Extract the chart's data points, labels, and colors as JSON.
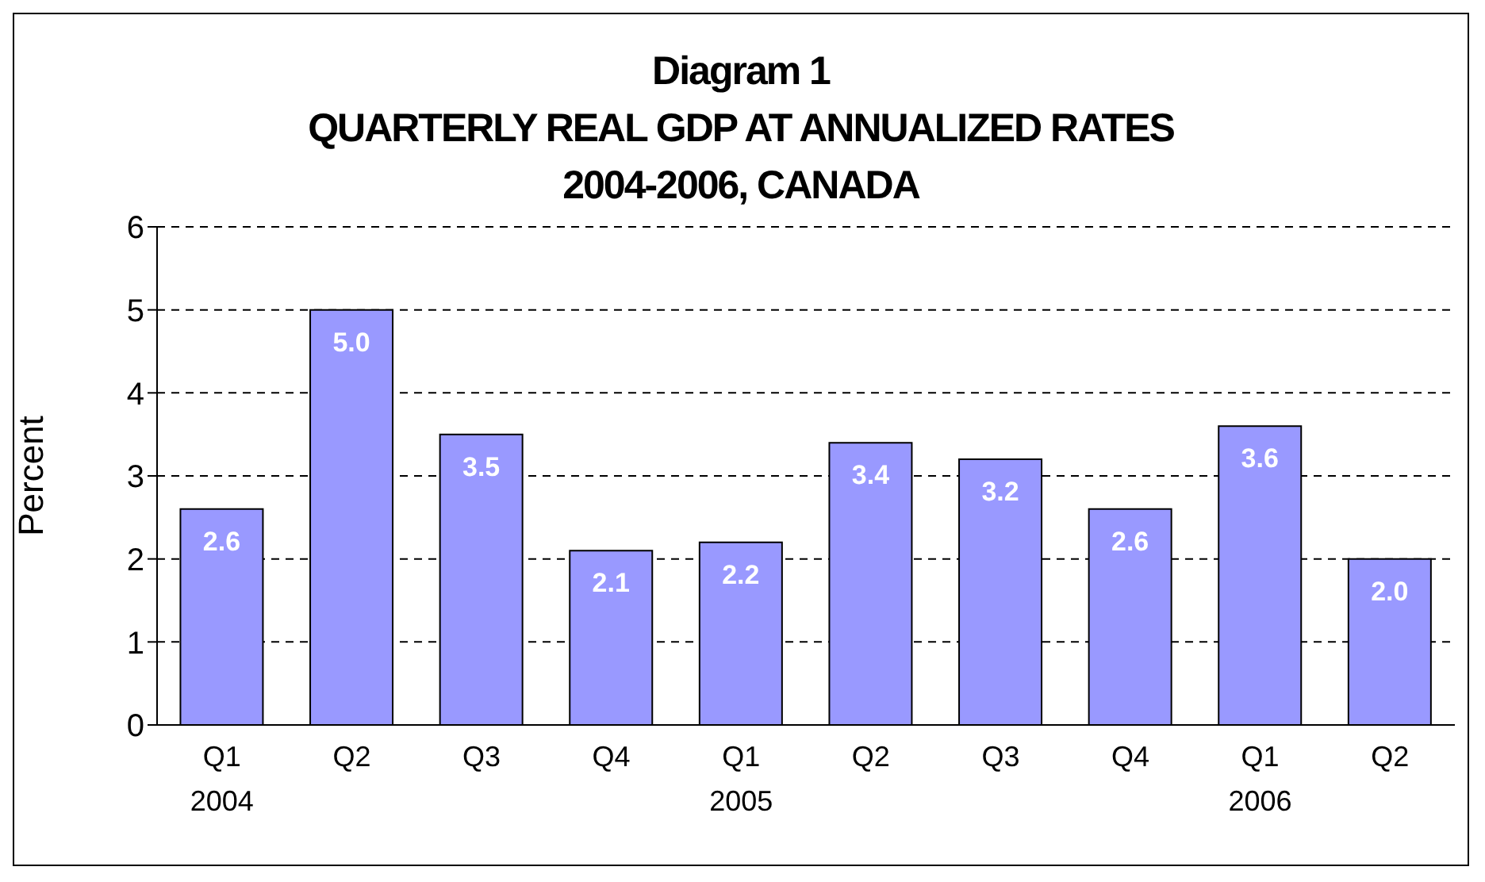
{
  "chart_data": {
    "type": "bar",
    "title": "Diagram 1",
    "subtitle": "QUARTERLY REAL GDP AT ANNUALIZED RATES\n2004-2006, CANADA",
    "ylabel": "Percent",
    "categories": [
      "Q1\n2004",
      "Q2",
      "Q3",
      "Q4",
      "Q1\n2005",
      "Q2",
      "Q3",
      "Q4",
      "Q1\n2006",
      "Q2"
    ],
    "values": [
      2.6,
      5.0,
      3.5,
      2.1,
      2.2,
      3.4,
      3.2,
      2.6,
      3.6,
      2.0
    ],
    "value_labels": [
      "2.6",
      "5.0",
      "3.5",
      "2.1",
      "2.2",
      "3.4",
      "3.2",
      "2.6",
      "3.6",
      "2.0"
    ],
    "color": "#9999ff",
    "ylim": [
      0,
      6
    ],
    "yticks": [
      0,
      1,
      2,
      3,
      4,
      5,
      6
    ],
    "grid": "y"
  }
}
